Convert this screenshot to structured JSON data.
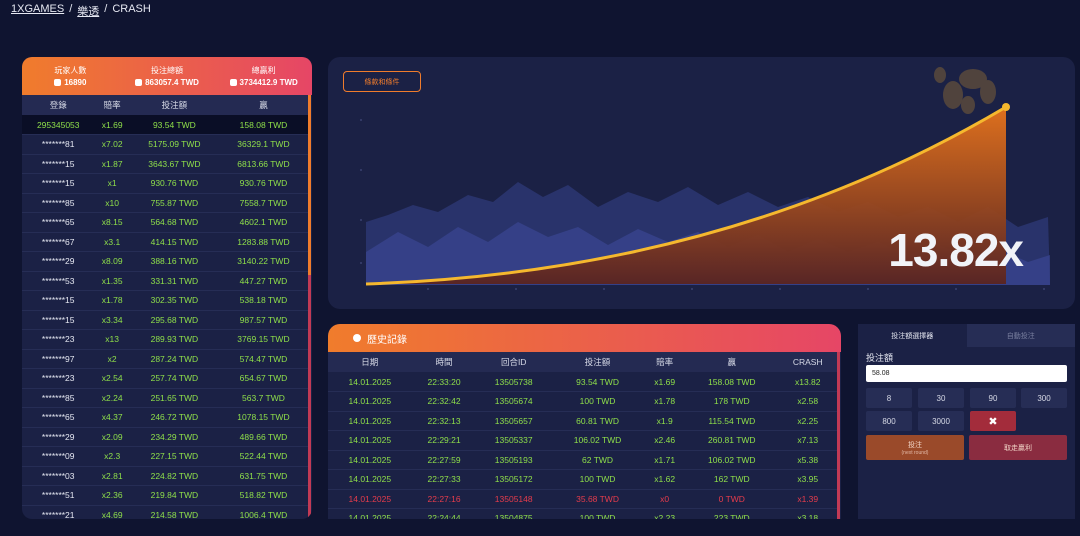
{
  "breadcrumb": {
    "home": "1XGAMES",
    "category": "樂透",
    "current": "CRASH"
  },
  "players": {
    "stats": [
      {
        "label": "玩家人數",
        "value": "16890",
        "icon": "user-icon"
      },
      {
        "label": "投注總額",
        "value": "863057.4 TWD",
        "icon": "coins-icon"
      },
      {
        "label": "總贏利",
        "value": "3734412.9 TWD",
        "icon": "money-bag-icon"
      }
    ],
    "columns": [
      "登錄",
      "賠率",
      "投注額",
      "贏"
    ],
    "rows": [
      [
        "295345053",
        "x1.69",
        "93.54 TWD",
        "158.08 TWD"
      ],
      [
        "*******81",
        "x7.02",
        "5175.09 TWD",
        "36329.1 TWD"
      ],
      [
        "*******15",
        "x1.87",
        "3643.67 TWD",
        "6813.66 TWD"
      ],
      [
        "*******15",
        "x1",
        "930.76 TWD",
        "930.76 TWD"
      ],
      [
        "*******85",
        "x10",
        "755.87 TWD",
        "7558.7 TWD"
      ],
      [
        "*******65",
        "x8.15",
        "564.68 TWD",
        "4602.1 TWD"
      ],
      [
        "*******67",
        "x3.1",
        "414.15 TWD",
        "1283.88 TWD"
      ],
      [
        "*******29",
        "x8.09",
        "388.16 TWD",
        "3140.22 TWD"
      ],
      [
        "*******53",
        "x1.35",
        "331.31 TWD",
        "447.27 TWD"
      ],
      [
        "*******15",
        "x1.78",
        "302.35 TWD",
        "538.18 TWD"
      ],
      [
        "*******15",
        "x3.34",
        "295.68 TWD",
        "987.57 TWD"
      ],
      [
        "*******23",
        "x13",
        "289.93 TWD",
        "3769.15 TWD"
      ],
      [
        "*******97",
        "x2",
        "287.24 TWD",
        "574.47 TWD"
      ],
      [
        "*******23",
        "x2.54",
        "257.74 TWD",
        "654.67 TWD"
      ],
      [
        "*******85",
        "x2.24",
        "251.65 TWD",
        "563.7 TWD"
      ],
      [
        "*******65",
        "x4.37",
        "246.72 TWD",
        "1078.15 TWD"
      ],
      [
        "*******29",
        "x2.09",
        "234.29 TWD",
        "489.66 TWD"
      ],
      [
        "*******09",
        "x2.3",
        "227.15 TWD",
        "522.44 TWD"
      ],
      [
        "*******03",
        "x2.81",
        "224.82 TWD",
        "631.75 TWD"
      ],
      [
        "*******51",
        "x2.36",
        "219.84 TWD",
        "518.82 TWD"
      ],
      [
        "*******21",
        "x4.69",
        "214.58 TWD",
        "1006.4 TWD"
      ]
    ]
  },
  "game": {
    "rules_button": "條款和條件",
    "multiplier": "13.82x",
    "colors": {
      "accent": "#f07c2c",
      "curve": "#f5b82e"
    }
  },
  "history": {
    "title": "歷史記錄",
    "icon": "history-icon",
    "columns": [
      "日期",
      "時間",
      "回合ID",
      "投注額",
      "賠率",
      "贏",
      "CRASH"
    ],
    "rows": [
      {
        "cells": [
          "14.01.2025",
          "22:33:20",
          "13505738",
          "93.54 TWD",
          "x1.69",
          "158.08 TWD",
          "x13.82"
        ],
        "loss": false
      },
      {
        "cells": [
          "14.01.2025",
          "22:32:42",
          "13505674",
          "100 TWD",
          "x1.78",
          "178 TWD",
          "x2.58"
        ],
        "loss": false
      },
      {
        "cells": [
          "14.01.2025",
          "22:32:13",
          "13505657",
          "60.81 TWD",
          "x1.9",
          "115.54 TWD",
          "x2.25"
        ],
        "loss": false
      },
      {
        "cells": [
          "14.01.2025",
          "22:29:21",
          "13505337",
          "106.02 TWD",
          "x2.46",
          "260.81 TWD",
          "x7.13"
        ],
        "loss": false
      },
      {
        "cells": [
          "14.01.2025",
          "22:27:59",
          "13505193",
          "62 TWD",
          "x1.71",
          "106.02 TWD",
          "x5.38"
        ],
        "loss": false
      },
      {
        "cells": [
          "14.01.2025",
          "22:27:33",
          "13505172",
          "100 TWD",
          "x1.62",
          "162 TWD",
          "x3.95"
        ],
        "loss": false
      },
      {
        "cells": [
          "14.01.2025",
          "22:27:16",
          "13505148",
          "35.68 TWD",
          "x0",
          "0 TWD",
          "x1.39"
        ],
        "loss": true
      },
      {
        "cells": [
          "14.01.2025",
          "22:24:44",
          "13504875",
          "100 TWD",
          "x2.23",
          "223 TWD",
          "x3.18"
        ],
        "loss": false
      }
    ]
  },
  "bet": {
    "tabs": [
      "投注額選擇器",
      "自動投注"
    ],
    "label": "投注額",
    "value": "58.08",
    "chips": [
      "8",
      "30",
      "90",
      "300",
      "800",
      "3000"
    ],
    "clear_icon": "close-icon",
    "place_label": "投注",
    "place_sub": "(next round)",
    "cashout_label": "取走贏利"
  }
}
